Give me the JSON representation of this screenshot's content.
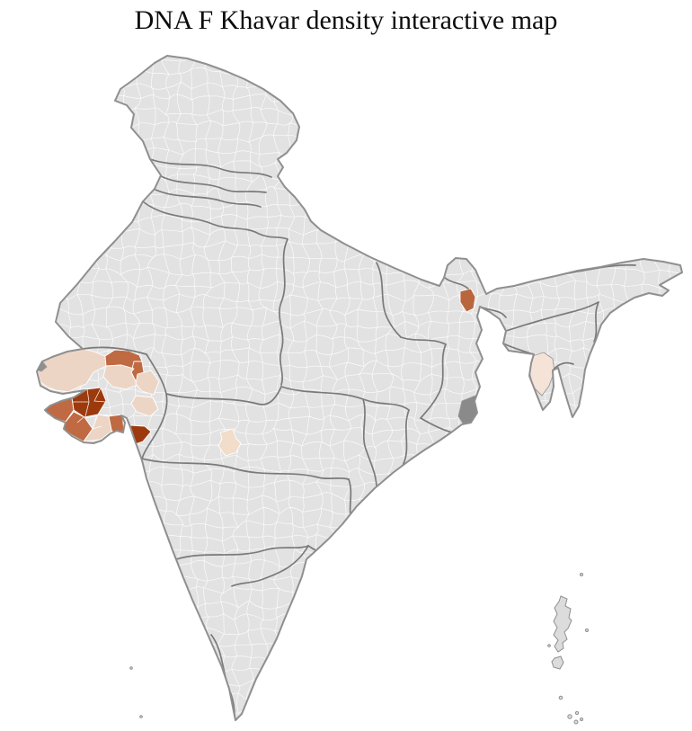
{
  "title": "DNA F Khavar density interactive map",
  "map": {
    "country": "India",
    "background": "#ffffff",
    "land_fill": "#e2e2e2",
    "district_line_color": "#ffffff",
    "state_line_color": "#7a7a7a",
    "coast_line_color": "#8f8f8f",
    "island_fill": "#dcdcdc",
    "shade_scale": {
      "pale": "#f5e3d8",
      "light": "#edd5c5",
      "medium": "#bf6a43",
      "dark": "#9c3a0e",
      "neutral_dark_gray": "#8a8a8a"
    },
    "highlighted_regions": [
      {
        "id": "west-gujarat-large-marsh-district",
        "shade": "light",
        "color": "#edd5c5"
      },
      {
        "id": "north-gujarat-border-district",
        "shade": "medium",
        "color": "#bf6a43"
      },
      {
        "id": "north-gujarat-strip-district",
        "shade": "medium",
        "color": "#bf6a43"
      },
      {
        "id": "north-gujarat-central-district",
        "shade": "light",
        "color": "#edd5c5"
      },
      {
        "id": "northeast-gujarat-district",
        "shade": "light",
        "color": "#edd5c5"
      },
      {
        "id": "east-gujarat-district",
        "shade": "light",
        "color": "#edd5c5"
      },
      {
        "id": "gujarat-peninsula-central-cluster",
        "shade": "dark",
        "color": "#9c3a0e"
      },
      {
        "id": "gujarat-peninsula-northwest-coast",
        "shade": "medium",
        "color": "#bf6a43"
      },
      {
        "id": "gujarat-peninsula-south-district",
        "shade": "medium",
        "color": "#bf6a43"
      },
      {
        "id": "gujarat-peninsula-southeast-district",
        "shade": "light",
        "color": "#edd5c5"
      },
      {
        "id": "gujarat-peninsula-east-district",
        "shade": "medium",
        "color": "#bf6a43"
      },
      {
        "id": "south-gujarat-coastal-district",
        "shade": "dark",
        "color": "#9c3a0e"
      },
      {
        "id": "central-india-district",
        "shade": "pale",
        "color": "#f2dcca"
      },
      {
        "id": "northeast-foothill-district",
        "shade": "medium",
        "color": "#b9663f"
      },
      {
        "id": "far-northeast-hill-state",
        "shade": "pale",
        "color": "#f5e3d8"
      },
      {
        "id": "east-coast-delta-district",
        "shade": "neutral_dark_gray",
        "color": "#8a8a8a"
      },
      {
        "id": "west-marsh-tip-fragment",
        "shade": "neutral_dark_gray",
        "color": "#8f8f8f"
      }
    ]
  }
}
